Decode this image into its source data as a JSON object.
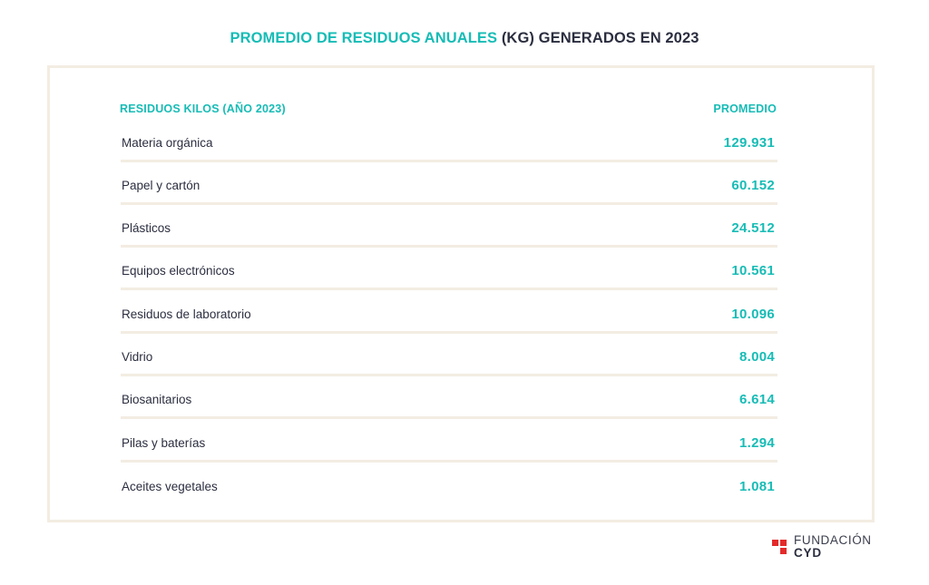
{
  "title": {
    "accent_part": "PROMEDIO DE RESIDUOS ANUALES",
    "dark_part": "(KG) GENERADOS EN 2023"
  },
  "table": {
    "header_name": "RESIDUOS KILOS (AÑO 2023)",
    "header_value": "PROMEDIO",
    "rows": [
      {
        "label": "Materia orgánica",
        "value": "129.931"
      },
      {
        "label": "Papel y cartón",
        "value": "60.152"
      },
      {
        "label": "Plásticos",
        "value": "24.512"
      },
      {
        "label": "Equipos electrónicos",
        "value": "10.561"
      },
      {
        "label": "Residuos de laboratorio",
        "value": "10.096"
      },
      {
        "label": "Vidrio",
        "value": "8.004"
      },
      {
        "label": "Biosanitarios",
        "value": "6.614"
      },
      {
        "label": "Pilas y baterías",
        "value": "1.294"
      },
      {
        "label": "Aceites vegetales",
        "value": "1.081"
      }
    ]
  },
  "logo": {
    "line1": "FUNDACIÓN",
    "line2": "CYD",
    "icon": "red-squares-logo-icon"
  },
  "colors": {
    "accent": "#17bcb6",
    "text": "#2b2e3f",
    "border": "#f3ece2",
    "logo_red": "#e32a2a"
  }
}
